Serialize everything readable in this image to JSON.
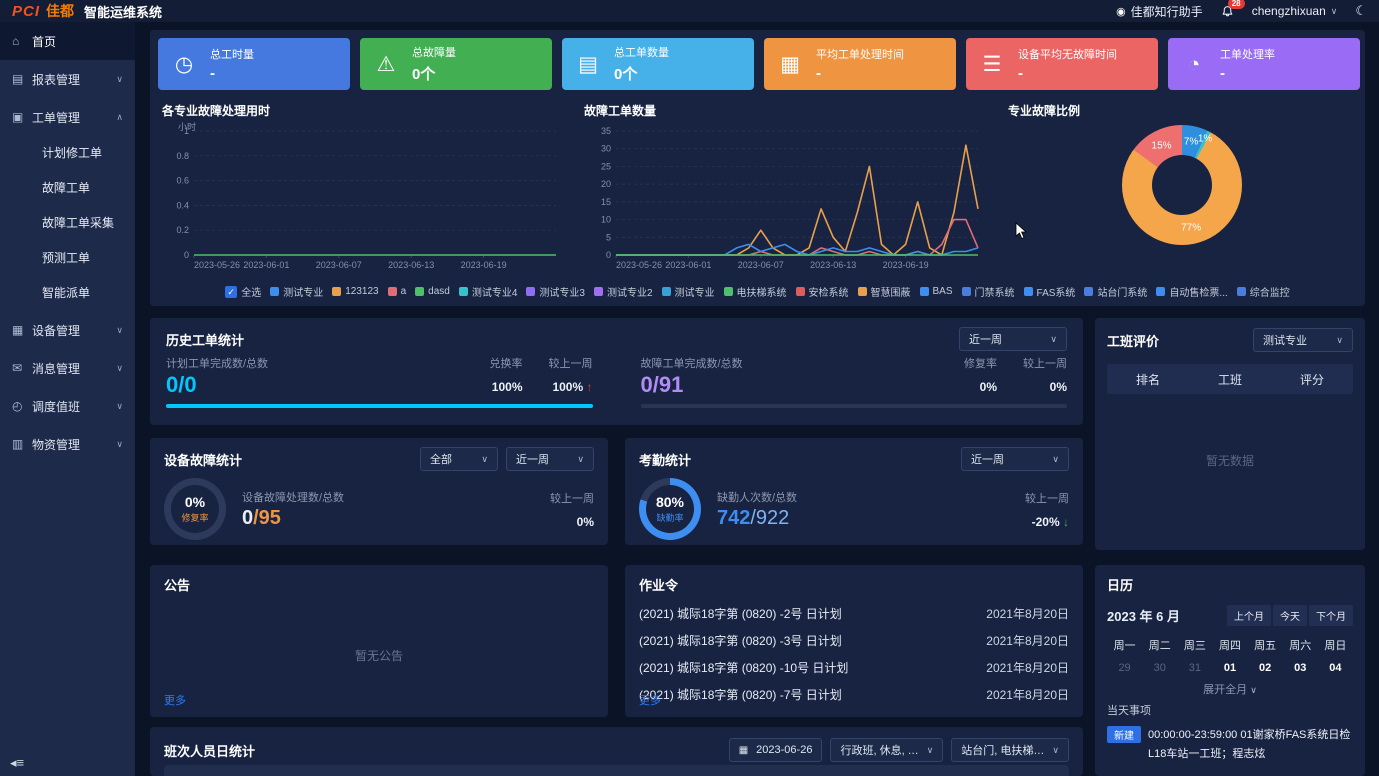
{
  "topbar": {
    "logo_pci": "PCI",
    "logo_jiadu": "佳都",
    "system_name": "智能运维系统",
    "assistant_label": "佳都知行助手",
    "notification_count": "28",
    "username": "chengzhixuan"
  },
  "sidebar": {
    "items": [
      {
        "key": "home",
        "label": "首页",
        "icon": "home-icon",
        "active": true
      },
      {
        "key": "reports",
        "label": "报表管理",
        "icon": "report-icon",
        "expandable": true,
        "expanded": false
      },
      {
        "key": "workorders",
        "label": "工单管理",
        "icon": "workorder-icon",
        "expandable": true,
        "expanded": true,
        "children": [
          {
            "key": "planned-repair-order",
            "label": "计划修工单"
          },
          {
            "key": "fault-order",
            "label": "故障工单"
          },
          {
            "key": "fault-order-collect",
            "label": "故障工单采集"
          },
          {
            "key": "predict-order",
            "label": "预测工单"
          },
          {
            "key": "smart-dispatch",
            "label": "智能派单"
          }
        ]
      },
      {
        "key": "devices",
        "label": "设备管理",
        "icon": "device-icon",
        "expandable": true,
        "expanded": false
      },
      {
        "key": "messages",
        "label": "消息管理",
        "icon": "message-icon",
        "expandable": true,
        "expanded": false
      },
      {
        "key": "dispatch-duty",
        "label": "调度值班",
        "icon": "dispatch-icon",
        "expandable": true,
        "expanded": false
      },
      {
        "key": "materials",
        "label": "物资管理",
        "icon": "material-icon",
        "expandable": true,
        "expanded": false
      }
    ]
  },
  "stat_cards": [
    {
      "label": "总工时量",
      "value": "-",
      "color": "#4679e0",
      "icon": "user-clock-icon"
    },
    {
      "label": "总故障量",
      "value": "0个",
      "color": "#43af53",
      "icon": "alert-hexagon-icon"
    },
    {
      "label": "总工单数量",
      "value": "0个",
      "color": "#45b1e8",
      "icon": "clipboard-icon"
    },
    {
      "label": "平均工单处理时间",
      "value": "-",
      "color": "#ef9440",
      "icon": "calendar-clock-icon"
    },
    {
      "label": "设备平均无故障时间",
      "value": "-",
      "color": "#ec6565",
      "icon": "server-icon"
    },
    {
      "label": "工单处理率",
      "value": "-",
      "color": "#9a6cf5",
      "icon": "pie-icon"
    }
  ],
  "chart_data": [
    {
      "type": "line",
      "title": "各专业故障处理用时",
      "ylabel": "小时",
      "ylim": [
        0,
        1
      ],
      "y_ticks": [
        1,
        0.8,
        0.6,
        0.4,
        0.2,
        0
      ],
      "x_ticks": [
        "2023-05-26",
        "2023-06-01",
        "2023-06-07",
        "2023-06-13",
        "2023-06-19"
      ],
      "x_tick_pos": [
        0,
        6,
        12,
        18,
        24
      ],
      "points": 31,
      "grid": true,
      "legend_position": "bottom-shared",
      "series": [
        {
          "name": "dasd",
          "color": "#4fc06a",
          "values": [
            0,
            0,
            0,
            0,
            0,
            0,
            0,
            0,
            0,
            0,
            0,
            0,
            0,
            0,
            0,
            0,
            0,
            0,
            0,
            0,
            0,
            0,
            0,
            0,
            0,
            0,
            0,
            0,
            0,
            0,
            0
          ]
        }
      ]
    },
    {
      "type": "line",
      "title": "故障工单数量",
      "ylabel": "",
      "ylim": [
        0,
        35
      ],
      "y_ticks": [
        35,
        30,
        25,
        20,
        15,
        10,
        5,
        0
      ],
      "x_ticks": [
        "2023-05-26",
        "2023-06-01",
        "2023-06-07",
        "2023-06-13",
        "2023-06-19"
      ],
      "x_tick_pos": [
        0,
        6,
        12,
        18,
        24
      ],
      "points": 31,
      "grid": true,
      "legend_position": "bottom-shared",
      "series": [
        {
          "name": "123123",
          "color": "#e8a04c",
          "values": [
            0,
            0,
            0,
            0,
            0,
            0,
            0,
            0,
            0,
            0,
            0,
            2,
            7,
            2,
            0,
            0,
            2,
            13,
            5,
            1,
            12,
            25,
            3,
            0,
            3,
            15,
            2,
            0,
            12,
            31,
            13
          ]
        },
        {
          "name": "a",
          "color": "#e06c75",
          "values": [
            0,
            0,
            0,
            0,
            0,
            0,
            0,
            0,
            0,
            0,
            0,
            0,
            1,
            0,
            0,
            0,
            0,
            2,
            1,
            0,
            0,
            1,
            0,
            0,
            0,
            1,
            0,
            3,
            10,
            10,
            2
          ]
        },
        {
          "name": "测试专业",
          "color": "#3d8ef0",
          "values": [
            0,
            0,
            0,
            0,
            0,
            0,
            0,
            0,
            0,
            0,
            2,
            3,
            1,
            2,
            3,
            1,
            0,
            1,
            2,
            1,
            1,
            2,
            1,
            0,
            0,
            1,
            0,
            0,
            1,
            1,
            2
          ]
        },
        {
          "name": "dasd",
          "color": "#4fc06a",
          "values": [
            0,
            0,
            0,
            0,
            0,
            0,
            0,
            0,
            0,
            0,
            0,
            0,
            0,
            0,
            0,
            0,
            0,
            0,
            0,
            0,
            0,
            0,
            0,
            0,
            0,
            0,
            0,
            0,
            0,
            0,
            0
          ]
        }
      ]
    },
    {
      "type": "pie",
      "title": "专业故障比例",
      "donut": true,
      "slices": [
        {
          "label": "7%",
          "value": 7,
          "color": "#2f8fdd"
        },
        {
          "label": "1%",
          "value": 1,
          "color": "#35c3c9"
        },
        {
          "label": "77%",
          "value": 77,
          "color": "#f5a54a"
        },
        {
          "label": "15%",
          "value": 15,
          "color": "#ed6f6f"
        }
      ]
    }
  ],
  "legend": {
    "select_all": "全选",
    "items": [
      {
        "label": "测试专业",
        "color": "#3d8ef0"
      },
      {
        "label": "123123",
        "color": "#e8a04c"
      },
      {
        "label": "a",
        "color": "#e06c75"
      },
      {
        "label": "dasd",
        "color": "#4fc06a"
      },
      {
        "label": "测试专业4",
        "color": "#35c3c9"
      },
      {
        "label": "测试专业3",
        "color": "#8f6ef3"
      },
      {
        "label": "测试专业2",
        "color": "#a06ef3"
      },
      {
        "label": "测试专业",
        "color": "#3aa0d8"
      },
      {
        "label": "电扶梯系统",
        "color": "#4fc06a"
      },
      {
        "label": "安检系统",
        "color": "#e05c5c"
      },
      {
        "label": "智慧围蔽",
        "color": "#e8a04c"
      },
      {
        "label": "BAS",
        "color": "#3d8ef0"
      },
      {
        "label": "门禁系统",
        "color": "#4a7de0"
      },
      {
        "label": "FAS系统",
        "color": "#3d8ef0"
      },
      {
        "label": "站台门系统",
        "color": "#4a7de0"
      },
      {
        "label": "自动售检票...",
        "color": "#3d8ef0"
      },
      {
        "label": "综合监控",
        "color": "#4a7de0"
      }
    ]
  },
  "history": {
    "title": "历史工单统计",
    "period": "近一周",
    "plan": {
      "label": "计划工单完成数/总数",
      "value": "0/0",
      "value_color": "#00c8ff",
      "rate_label": "兑换率",
      "rate": "100%",
      "wow_label": "较上一周",
      "wow": "100%",
      "wow_arrow": "↑",
      "wow_arrow_color": "#e53935",
      "bar_pct": 100,
      "bar_color": "#00c8ff"
    },
    "fault": {
      "label": "故障工单完成数/总数",
      "value": "0/91",
      "value_color": "#b18cf5",
      "rate_label": "修复率",
      "rate": "0%",
      "wow_label": "较上一周",
      "wow": "0%",
      "bar_pct": 0,
      "bar_color": "#b18cf5"
    }
  },
  "team_rating": {
    "title": "工班评价",
    "filter": "测试专业",
    "columns": [
      "排名",
      "工班",
      "评分"
    ],
    "empty": "暂无数据"
  },
  "device_fault": {
    "title": "设备故障统计",
    "filter1": "全部",
    "filter2": "近一周",
    "gauge": {
      "pct": "0%",
      "label": "修复率",
      "value": 0,
      "color": "#ef9440"
    },
    "stat_label": "设备故障处理数/总数",
    "value_num": "0",
    "value_total": "/95",
    "total_color": "#ef9440",
    "wow_label": "较上一周",
    "wow": "0%"
  },
  "attendance": {
    "title": "考勤统计",
    "filter": "近一周",
    "gauge": {
      "pct": "80%",
      "label": "缺勤率",
      "value": 80,
      "color": "#3d8ef0"
    },
    "stat_label": "缺勤人次数/总数",
    "value_num": "742",
    "value_total": "/922",
    "num_color": "#3d8ef0",
    "total_color": "#7fb3f5",
    "wow_label": "较上一周",
    "wow": "-20%",
    "wow_arrow": "↓",
    "wow_arrow_color": "#43af53"
  },
  "notice": {
    "title": "公告",
    "empty": "暂无公告",
    "more": "更多"
  },
  "work_orders": {
    "title": "作业令",
    "more": "更多",
    "items": [
      {
        "name": "(2021) 城际18字第 (0820) -2号 日计划",
        "date": "2021年8月20日"
      },
      {
        "name": "(2021) 城际18字第 (0820) -3号 日计划",
        "date": "2021年8月20日"
      },
      {
        "name": "(2021) 城际18字第 (0820) -10号 日计划",
        "date": "2021年8月20日"
      },
      {
        "name": "(2021) 城际18字第 (0820) -7号 日计划",
        "date": "2021年8月20日"
      }
    ]
  },
  "calendar": {
    "title": "日历",
    "month_label": "2023 年 6 月",
    "nav": [
      "上个月",
      "今天",
      "下个月"
    ],
    "weekdays": [
      "周一",
      "周二",
      "周三",
      "周四",
      "周五",
      "周六",
      "周日"
    ],
    "days": [
      {
        "d": "29",
        "muted": true
      },
      {
        "d": "30",
        "muted": true
      },
      {
        "d": "31",
        "muted": true
      },
      {
        "d": "01"
      },
      {
        "d": "02"
      },
      {
        "d": "03"
      },
      {
        "d": "04"
      }
    ],
    "expand": "展开全月",
    "today_label": "当天事项",
    "event": {
      "badge": "新建",
      "time": "00:00:00-23:59:00",
      "name": "01谢家桥FAS系统日检",
      "line2": "L18车站一工班；程志炫"
    }
  },
  "shift_stats": {
    "title": "班次人员日统计",
    "date": "2023-06-26",
    "shift_filter": "行政班, 休息, …",
    "major_filter": "站台门, 电扶梯…"
  }
}
